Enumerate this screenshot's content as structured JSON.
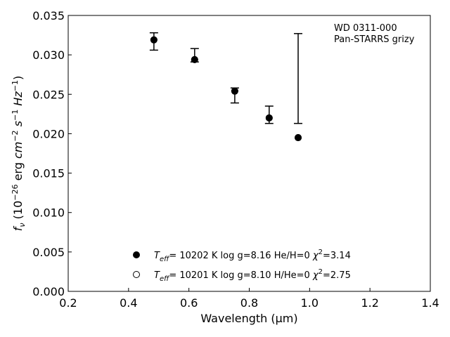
{
  "chart_data": {
    "type": "scatter",
    "xlabel": "Wavelength (μm)",
    "ylabel": "fν (10⁻²⁶ erg cm⁻² s⁻¹ Hz⁻¹)",
    "xlim": [
      0.2,
      1.4
    ],
    "ylim": [
      0.0,
      0.035
    ],
    "x_ticks": [
      "0.2",
      "0.4",
      "0.6",
      "0.8",
      "1.0",
      "1.2",
      "1.4"
    ],
    "y_ticks": [
      "0.000",
      "0.005",
      "0.010",
      "0.015",
      "0.020",
      "0.025",
      "0.030",
      "0.035"
    ],
    "grid": false,
    "legend_position": "bottom-center",
    "annotation": [
      "WD 0311-000",
      "Pan-STARRS grizy"
    ],
    "observed": {
      "x": [
        0.484,
        0.619,
        0.752,
        0.866,
        0.962
      ],
      "y": [
        0.0318,
        0.03,
        0.0254,
        0.0224,
        0.027
      ],
      "yerr_low": [
        0.0012,
        0.0009,
        0.0015,
        0.0011,
        0.0057
      ],
      "yerr_high": [
        0.001,
        0.0008,
        0.0004,
        0.0011,
        0.0057
      ]
    },
    "series": [
      {
        "name": "T_eff= 10202 K  log g=8.16  He/H=0  χ²=3.14",
        "marker": "filled-circle",
        "x": [
          0.484,
          0.619,
          0.752,
          0.866,
          0.962
        ],
        "y": [
          0.0319,
          0.0294,
          0.0254,
          0.022,
          0.0195
        ]
      },
      {
        "name": "T_eff= 10201 K  log g=8.10  H/He=0  χ²=2.75",
        "marker": "open-circle",
        "x": [
          0.484,
          0.619,
          0.752,
          0.866,
          0.962
        ],
        "y": [
          0.0319,
          0.0294,
          0.0254,
          0.022,
          0.0195
        ]
      }
    ],
    "legend": [
      {
        "marker": "filled-circle",
        "teff": "10202 K",
        "logg": "log g=8.16",
        "comp": "He/H=0",
        "chi": "=3.14"
      },
      {
        "marker": "open-circle",
        "teff": "10201 K",
        "logg": "log g=8.10",
        "comp": "H/He=0",
        "chi": "=2.75"
      }
    ]
  }
}
